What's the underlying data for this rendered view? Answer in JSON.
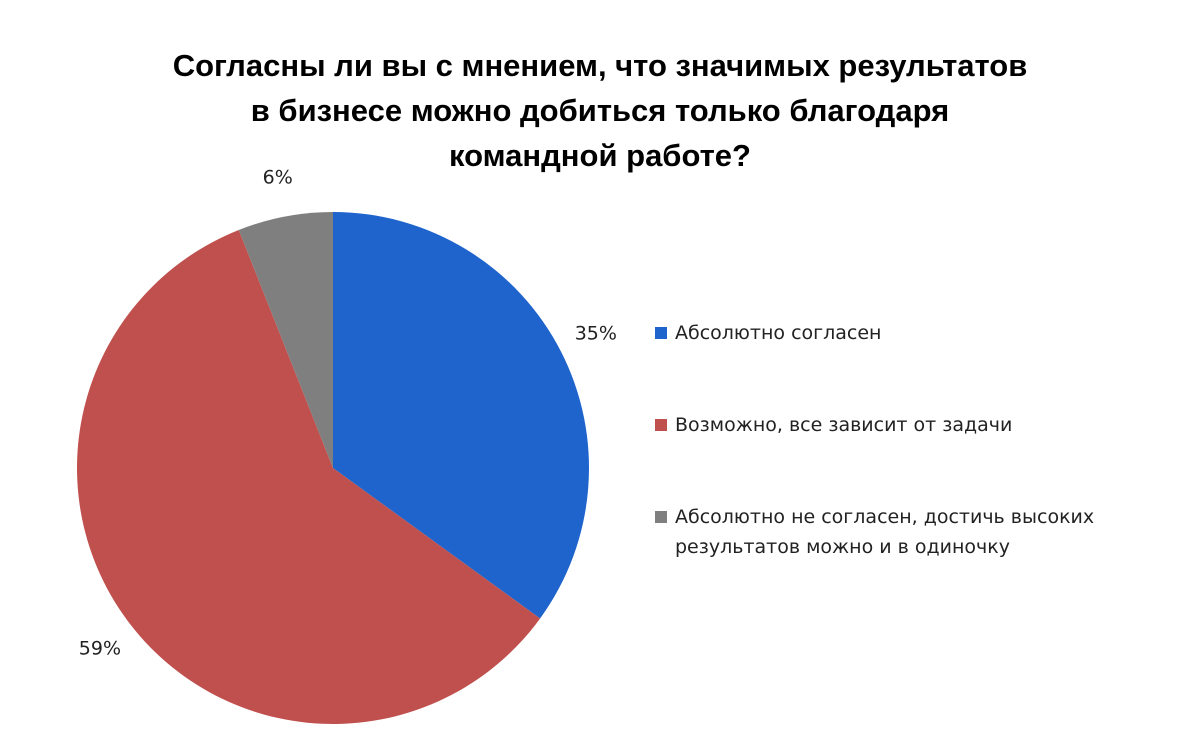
{
  "chart_data": {
    "type": "pie",
    "title": [
      "Согласны ли вы с мнением, что значимых результатов",
      "в бизнесе можно добиться только благодаря",
      "командной работе?"
    ],
    "categories": [
      "Абсолютно согласен",
      "Возможно, все зависит от задачи",
      "Абсолютно не согласен, достичь высоких результатов можно и в одиночку"
    ],
    "values": [
      35,
      59,
      6
    ],
    "value_labels": [
      "35%",
      "59%",
      "6%"
    ],
    "colors": [
      "#1f64cc",
      "#c0504d",
      "#7f7f7f"
    ],
    "legend": "right"
  }
}
